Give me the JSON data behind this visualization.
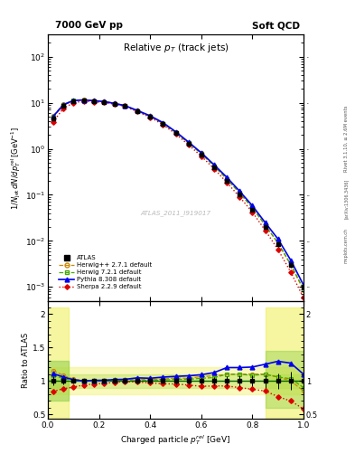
{
  "title_left": "7000 GeV pp",
  "title_right": "Soft QCD",
  "plot_title": "Relative $p_T$ (track jets)",
  "xlabel": "Charged particle $p_T^{rel}$ [GeV]",
  "ylabel": "$1/N_{jet}$ $dN/dp_T^{rel}$ [GeV$^{-1}$]",
  "ylabel_ratio": "Ratio to ATLAS",
  "right_label": "Rivet 3.1.10, ≥ 2.6M events",
  "watermark": "ATLAS_2011_I919017",
  "arxiv": "[arXiv:1306.3436]",
  "mcplots": "mcplots.cern.ch",
  "atlas_x": [
    0.02,
    0.06,
    0.1,
    0.14,
    0.18,
    0.22,
    0.26,
    0.3,
    0.35,
    0.4,
    0.45,
    0.5,
    0.55,
    0.6,
    0.65,
    0.7,
    0.75,
    0.8,
    0.85,
    0.9,
    0.95,
    1.0
  ],
  "atlas_y": [
    4.5,
    8.5,
    11.0,
    11.5,
    11.0,
    10.5,
    9.5,
    8.5,
    6.5,
    5.0,
    3.5,
    2.2,
    1.3,
    0.75,
    0.4,
    0.2,
    0.1,
    0.048,
    0.02,
    0.0085,
    0.003,
    0.001
  ],
  "atlas_yerr": [
    0.3,
    0.4,
    0.4,
    0.4,
    0.35,
    0.35,
    0.35,
    0.3,
    0.25,
    0.2,
    0.15,
    0.1,
    0.06,
    0.04,
    0.025,
    0.015,
    0.008,
    0.004,
    0.002,
    0.001,
    0.0004,
    0.0002
  ],
  "herwigpp_y": [
    5.2,
    9.2,
    11.3,
    11.6,
    11.1,
    10.6,
    9.7,
    8.7,
    6.7,
    5.1,
    3.6,
    2.3,
    1.35,
    0.8,
    0.43,
    0.22,
    0.11,
    0.053,
    0.022,
    0.009,
    0.003,
    0.00085
  ],
  "herwig7_y": [
    4.9,
    8.8,
    11.1,
    11.5,
    11.0,
    10.5,
    9.6,
    8.6,
    6.6,
    5.05,
    3.55,
    2.25,
    1.33,
    0.78,
    0.42,
    0.22,
    0.11,
    0.052,
    0.022,
    0.009,
    0.0031,
    0.0009
  ],
  "pythia_y": [
    5.0,
    9.0,
    11.2,
    11.5,
    11.1,
    10.6,
    9.7,
    8.7,
    6.8,
    5.2,
    3.7,
    2.35,
    1.4,
    0.82,
    0.45,
    0.24,
    0.12,
    0.058,
    0.025,
    0.011,
    0.0038,
    0.0011
  ],
  "sherpa_y": [
    3.8,
    7.5,
    10.0,
    10.8,
    10.5,
    10.1,
    9.3,
    8.4,
    6.4,
    4.85,
    3.35,
    2.1,
    1.22,
    0.69,
    0.37,
    0.185,
    0.09,
    0.042,
    0.017,
    0.0065,
    0.0021,
    0.00058
  ],
  "herwigpp_color": "#cc8800",
  "herwig7_color": "#44aa00",
  "pythia_color": "#0000ee",
  "sherpa_color": "#dd0000",
  "atlas_color": "#000000",
  "band_green_inner": "#88cc44",
  "band_yellow_outer": "#eeee44",
  "ylim_main": [
    0.0005,
    300
  ],
  "ylim_ratio": [
    0.43,
    2.2
  ],
  "xlim": [
    0.0,
    1.0
  ]
}
